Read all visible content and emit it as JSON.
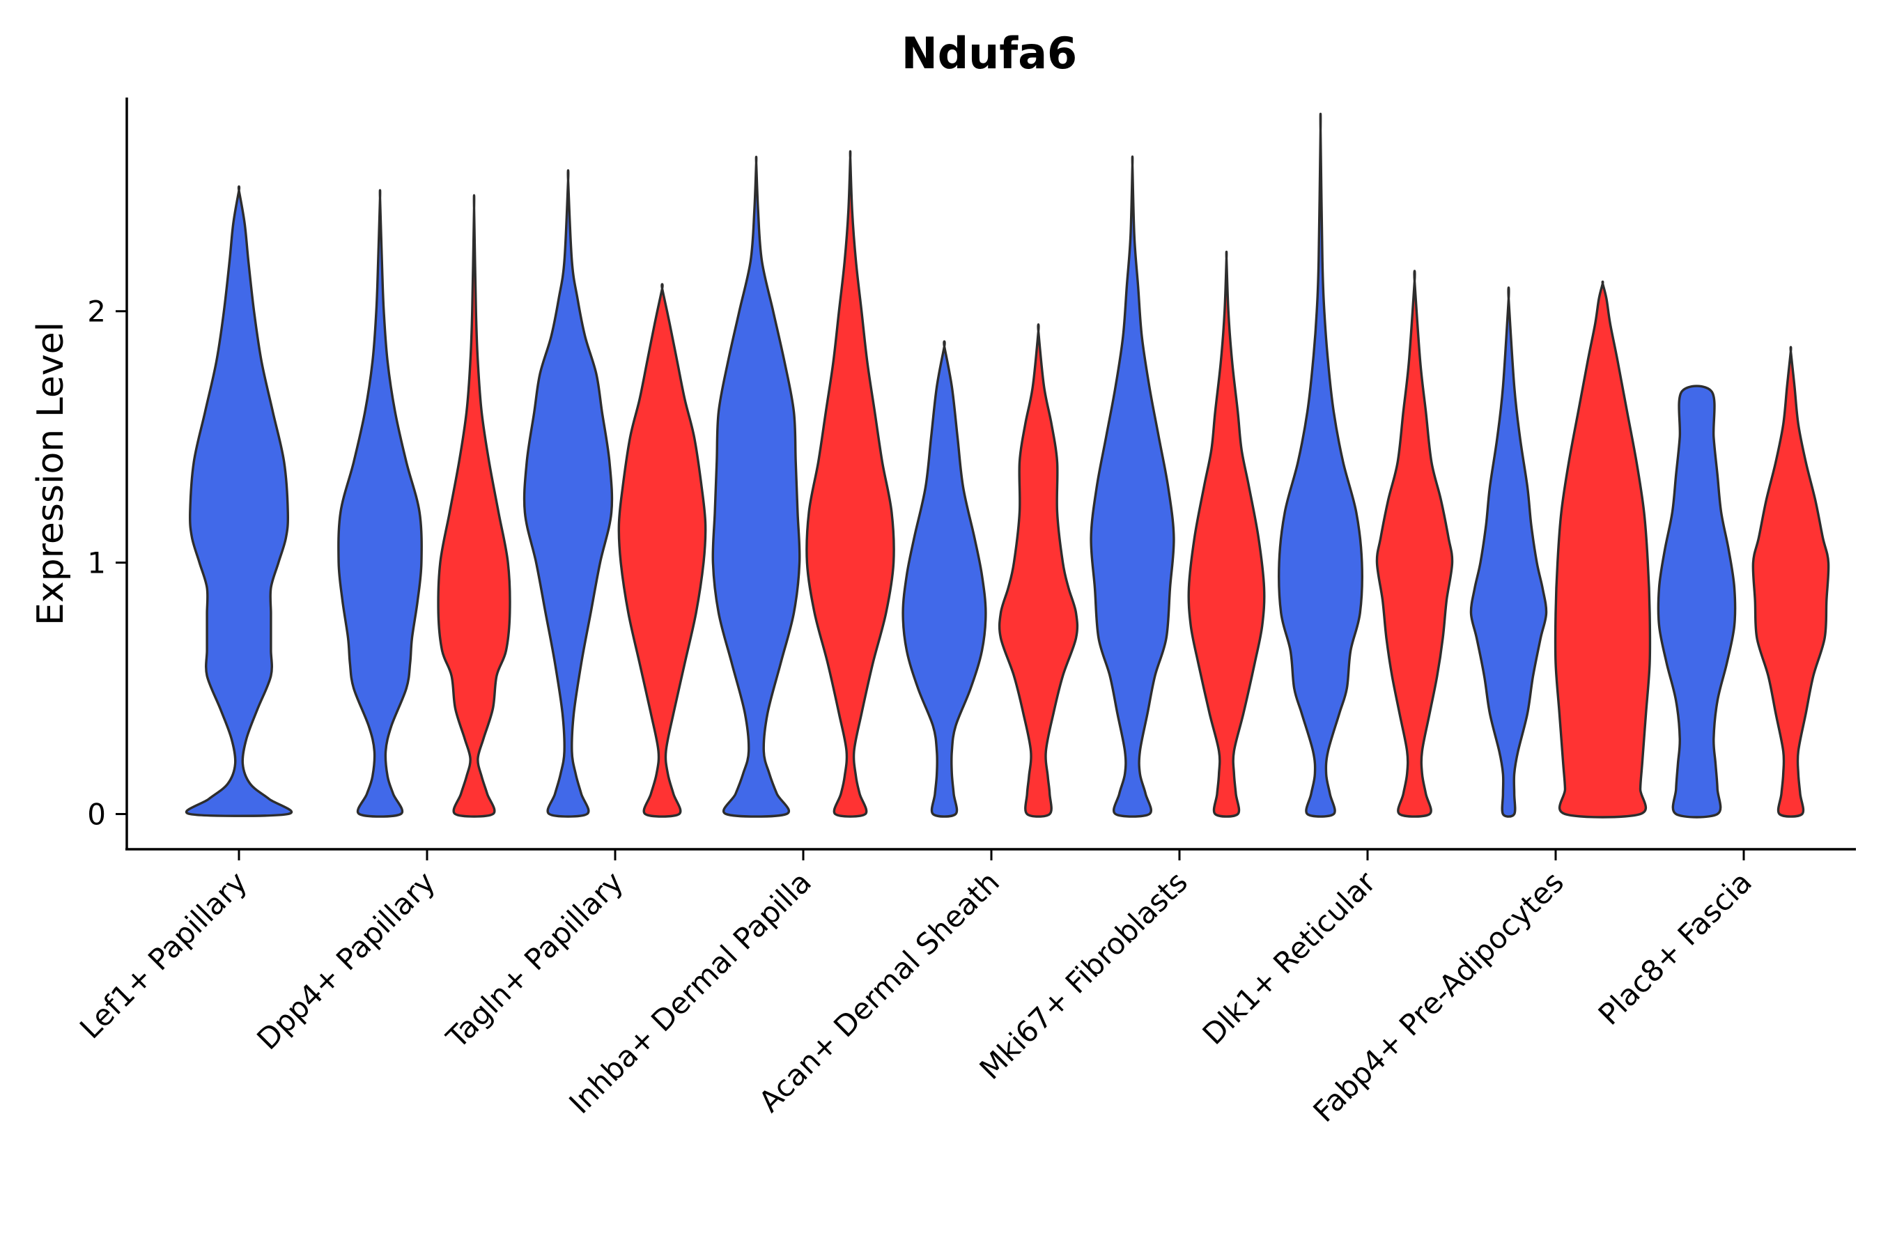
{
  "chart_data": {
    "type": "violin",
    "title": "Ndufa6",
    "xlabel": "",
    "ylabel": "Expression Level",
    "ylim": [
      -0.14,
      2.85
    ],
    "yticks": [
      0,
      1,
      2
    ],
    "grid": false,
    "legend": "none",
    "colors": {
      "group_a": "#4169E9",
      "group_b": "#FF3333",
      "outline": "#2d2d2d"
    },
    "categories": [
      "Lef1+ Papillary",
      "Dpp4+ Papillary",
      "Tagln+ Papillary",
      "Inhba+ Dermal Papilla",
      "Acan+ Dermal Sheath",
      "Mki67+ Fibroblasts",
      "Dlk1+ Reticular",
      "Fabp4+ Pre-Adipocytes",
      "Plac8+ Fascia"
    ],
    "violins": [
      {
        "category": "Lef1+ Papillary",
        "group": "a",
        "max": 2.48,
        "halfwidth": 0.26,
        "profile": [
          [
            0,
            0.26
          ],
          [
            0.06,
            0.16
          ],
          [
            0.12,
            0.06
          ],
          [
            0.2,
            0.02
          ],
          [
            0.3,
            0.04
          ],
          [
            0.42,
            0.1
          ],
          [
            0.55,
            0.17
          ],
          [
            0.65,
            0.17
          ],
          [
            0.73,
            0.17
          ],
          [
            0.8,
            0.17
          ],
          [
            0.9,
            0.17
          ],
          [
            1.0,
            0.21
          ],
          [
            1.1,
            0.25
          ],
          [
            1.2,
            0.26
          ],
          [
            1.4,
            0.24
          ],
          [
            1.6,
            0.18
          ],
          [
            1.8,
            0.12
          ],
          [
            2.0,
            0.08
          ],
          [
            2.2,
            0.05
          ],
          [
            2.35,
            0.03
          ],
          [
            2.48,
            0.0
          ]
        ]
      },
      {
        "category": "Dpp4+ Papillary",
        "group": "a",
        "max": 2.45,
        "halfwidth": 0.22,
        "profile": [
          [
            0,
            0.11
          ],
          [
            0.08,
            0.07
          ],
          [
            0.15,
            0.04
          ],
          [
            0.25,
            0.03
          ],
          [
            0.35,
            0.06
          ],
          [
            0.5,
            0.14
          ],
          [
            0.6,
            0.16
          ],
          [
            0.7,
            0.17
          ],
          [
            0.85,
            0.2
          ],
          [
            1.0,
            0.22
          ],
          [
            1.2,
            0.21
          ],
          [
            1.4,
            0.14
          ],
          [
            1.6,
            0.08
          ],
          [
            1.8,
            0.04
          ],
          [
            2.0,
            0.02
          ],
          [
            2.2,
            0.01
          ],
          [
            2.45,
            0.0
          ]
        ]
      },
      {
        "category": "Dpp4+ Papillary",
        "group": "b",
        "max": 2.41,
        "halfwidth": 0.19,
        "profile": [
          [
            0,
            0.1
          ],
          [
            0.08,
            0.07
          ],
          [
            0.15,
            0.04
          ],
          [
            0.22,
            0.02
          ],
          [
            0.3,
            0.05
          ],
          [
            0.42,
            0.1
          ],
          [
            0.55,
            0.12
          ],
          [
            0.65,
            0.17
          ],
          [
            0.8,
            0.19
          ],
          [
            1.0,
            0.18
          ],
          [
            1.2,
            0.13
          ],
          [
            1.4,
            0.08
          ],
          [
            1.6,
            0.04
          ],
          [
            1.8,
            0.02
          ],
          [
            2.0,
            0.01
          ],
          [
            2.41,
            0.0
          ]
        ]
      },
      {
        "category": "Tagln+ Papillary",
        "group": "a",
        "max": 2.52,
        "halfwidth": 0.23,
        "profile": [
          [
            0,
            0.1
          ],
          [
            0.08,
            0.07
          ],
          [
            0.16,
            0.04
          ],
          [
            0.25,
            0.02
          ],
          [
            0.4,
            0.03
          ],
          [
            0.6,
            0.07
          ],
          [
            0.8,
            0.12
          ],
          [
            1.0,
            0.17
          ],
          [
            1.2,
            0.23
          ],
          [
            1.4,
            0.22
          ],
          [
            1.6,
            0.18
          ],
          [
            1.75,
            0.15
          ],
          [
            1.9,
            0.09
          ],
          [
            2.05,
            0.05
          ],
          [
            2.2,
            0.02
          ],
          [
            2.52,
            0.0
          ]
        ]
      },
      {
        "category": "Tagln+ Papillary",
        "group": "b",
        "max": 2.09,
        "halfwidth": 0.23,
        "profile": [
          [
            0,
            0.09
          ],
          [
            0.08,
            0.06
          ],
          [
            0.16,
            0.03
          ],
          [
            0.25,
            0.02
          ],
          [
            0.4,
            0.06
          ],
          [
            0.6,
            0.12
          ],
          [
            0.8,
            0.18
          ],
          [
            1.0,
            0.22
          ],
          [
            1.15,
            0.23
          ],
          [
            1.3,
            0.21
          ],
          [
            1.5,
            0.17
          ],
          [
            1.65,
            0.12
          ],
          [
            1.8,
            0.08
          ],
          [
            1.95,
            0.04
          ],
          [
            2.09,
            0.0
          ]
        ]
      },
      {
        "category": "Inhba+ Dermal Papilla",
        "group": "a",
        "max": 2.59,
        "halfwidth": 0.23,
        "profile": [
          [
            0,
            0.16
          ],
          [
            0.08,
            0.11
          ],
          [
            0.16,
            0.07
          ],
          [
            0.25,
            0.04
          ],
          [
            0.4,
            0.06
          ],
          [
            0.6,
            0.13
          ],
          [
            0.8,
            0.2
          ],
          [
            1.0,
            0.23
          ],
          [
            1.2,
            0.22
          ],
          [
            1.4,
            0.21
          ],
          [
            1.6,
            0.2
          ],
          [
            1.8,
            0.15
          ],
          [
            2.0,
            0.09
          ],
          [
            2.2,
            0.03
          ],
          [
            2.4,
            0.01
          ],
          [
            2.59,
            0.0
          ]
        ]
      },
      {
        "category": "Inhba+ Dermal Papilla",
        "group": "b",
        "max": 2.61,
        "halfwidth": 0.23,
        "profile": [
          [
            0,
            0.08
          ],
          [
            0.08,
            0.05
          ],
          [
            0.15,
            0.03
          ],
          [
            0.25,
            0.02
          ],
          [
            0.4,
            0.06
          ],
          [
            0.6,
            0.12
          ],
          [
            0.8,
            0.19
          ],
          [
            1.0,
            0.23
          ],
          [
            1.2,
            0.22
          ],
          [
            1.4,
            0.17
          ],
          [
            1.6,
            0.13
          ],
          [
            1.8,
            0.09
          ],
          [
            2.0,
            0.06
          ],
          [
            2.2,
            0.03
          ],
          [
            2.4,
            0.01
          ],
          [
            2.61,
            0.0
          ]
        ]
      },
      {
        "category": "Acan+ Dermal Sheath",
        "group": "a",
        "max": 1.86,
        "halfwidth": 0.23,
        "profile": [
          [
            0,
            0.06
          ],
          [
            0.08,
            0.05
          ],
          [
            0.16,
            0.04
          ],
          [
            0.25,
            0.04
          ],
          [
            0.35,
            0.06
          ],
          [
            0.5,
            0.14
          ],
          [
            0.65,
            0.2
          ],
          [
            0.8,
            0.22
          ],
          [
            0.95,
            0.2
          ],
          [
            1.1,
            0.16
          ],
          [
            1.3,
            0.1
          ],
          [
            1.5,
            0.07
          ],
          [
            1.7,
            0.04
          ],
          [
            1.86,
            0.0
          ]
        ]
      },
      {
        "category": "Acan+ Dermal Sheath",
        "group": "b",
        "max": 1.92,
        "halfwidth": 0.2,
        "profile": [
          [
            0,
            0.06
          ],
          [
            0.08,
            0.06
          ],
          [
            0.15,
            0.05
          ],
          [
            0.25,
            0.04
          ],
          [
            0.4,
            0.08
          ],
          [
            0.55,
            0.13
          ],
          [
            0.7,
            0.2
          ],
          [
            0.8,
            0.2
          ],
          [
            0.9,
            0.16
          ],
          [
            1.0,
            0.13
          ],
          [
            1.2,
            0.1
          ],
          [
            1.4,
            0.1
          ],
          [
            1.55,
            0.07
          ],
          [
            1.7,
            0.03
          ],
          [
            1.92,
            0.0
          ]
        ]
      },
      {
        "category": "Mki67+ Fibroblasts",
        "group": "a",
        "max": 2.58,
        "halfwidth": 0.23,
        "profile": [
          [
            0,
            0.09
          ],
          [
            0.08,
            0.07
          ],
          [
            0.16,
            0.04
          ],
          [
            0.25,
            0.04
          ],
          [
            0.4,
            0.08
          ],
          [
            0.55,
            0.12
          ],
          [
            0.7,
            0.18
          ],
          [
            0.9,
            0.2
          ],
          [
            1.1,
            0.22
          ],
          [
            1.3,
            0.19
          ],
          [
            1.5,
            0.14
          ],
          [
            1.7,
            0.09
          ],
          [
            1.9,
            0.05
          ],
          [
            2.1,
            0.03
          ],
          [
            2.3,
            0.01
          ],
          [
            2.58,
            0.0
          ]
        ]
      },
      {
        "category": "Mki67+ Fibroblasts",
        "group": "b",
        "max": 2.21,
        "halfwidth": 0.21,
        "profile": [
          [
            0,
            0.06
          ],
          [
            0.08,
            0.05
          ],
          [
            0.16,
            0.04
          ],
          [
            0.25,
            0.04
          ],
          [
            0.4,
            0.09
          ],
          [
            0.6,
            0.15
          ],
          [
            0.75,
            0.19
          ],
          [
            0.9,
            0.2
          ],
          [
            1.1,
            0.17
          ],
          [
            1.3,
            0.12
          ],
          [
            1.45,
            0.08
          ],
          [
            1.6,
            0.06
          ],
          [
            1.8,
            0.03
          ],
          [
            2.0,
            0.01
          ],
          [
            2.21,
            0.0
          ]
        ]
      },
      {
        "category": "Dlk1+ Reticular",
        "group": "a",
        "max": 2.72,
        "halfwidth": 0.22,
        "profile": [
          [
            0,
            0.07
          ],
          [
            0.08,
            0.05
          ],
          [
            0.16,
            0.03
          ],
          [
            0.25,
            0.04
          ],
          [
            0.4,
            0.1
          ],
          [
            0.5,
            0.14
          ],
          [
            0.65,
            0.16
          ],
          [
            0.8,
            0.21
          ],
          [
            1.0,
            0.22
          ],
          [
            1.2,
            0.19
          ],
          [
            1.4,
            0.12
          ],
          [
            1.6,
            0.07
          ],
          [
            1.8,
            0.04
          ],
          [
            2.0,
            0.02
          ],
          [
            2.2,
            0.01
          ],
          [
            2.72,
            0.0
          ]
        ]
      },
      {
        "category": "Dlk1+ Reticular",
        "group": "b",
        "max": 2.12,
        "halfwidth": 0.2,
        "profile": [
          [
            0,
            0.08
          ],
          [
            0.08,
            0.06
          ],
          [
            0.16,
            0.04
          ],
          [
            0.25,
            0.04
          ],
          [
            0.4,
            0.08
          ],
          [
            0.55,
            0.12
          ],
          [
            0.7,
            0.15
          ],
          [
            0.85,
            0.17
          ],
          [
            1.0,
            0.2
          ],
          [
            1.1,
            0.18
          ],
          [
            1.25,
            0.14
          ],
          [
            1.4,
            0.09
          ],
          [
            1.6,
            0.06
          ],
          [
            1.8,
            0.03
          ],
          [
            2.12,
            0.0
          ]
        ]
      },
      {
        "category": "Fabp4+ Pre-Adipocytes",
        "group": "a",
        "max": 2.05,
        "halfwidth": 0.2,
        "profile": [
          [
            0,
            0.03
          ],
          [
            0.08,
            0.03
          ],
          [
            0.16,
            0.03
          ],
          [
            0.25,
            0.05
          ],
          [
            0.4,
            0.1
          ],
          [
            0.55,
            0.13
          ],
          [
            0.7,
            0.17
          ],
          [
            0.8,
            0.2
          ],
          [
            0.9,
            0.18
          ],
          [
            1.0,
            0.15
          ],
          [
            1.15,
            0.12
          ],
          [
            1.3,
            0.1
          ],
          [
            1.5,
            0.06
          ],
          [
            1.7,
            0.03
          ],
          [
            2.05,
            0.0
          ]
        ]
      },
      {
        "category": "Fabp4+ Pre-Adipocytes",
        "group": "b",
        "max": 2.11,
        "halfwidth": 0.25,
        "profile": [
          [
            0,
            0.2
          ],
          [
            0.1,
            0.2
          ],
          [
            0.2,
            0.21
          ],
          [
            0.4,
            0.23
          ],
          [
            0.6,
            0.25
          ],
          [
            0.8,
            0.25
          ],
          [
            1.0,
            0.24
          ],
          [
            1.2,
            0.22
          ],
          [
            1.4,
            0.18
          ],
          [
            1.6,
            0.13
          ],
          [
            1.8,
            0.08
          ],
          [
            1.95,
            0.04
          ],
          [
            2.05,
            0.02
          ],
          [
            2.11,
            0.0
          ]
        ]
      },
      {
        "category": "Plac8+ Fascia",
        "group": "a",
        "max": 1.68,
        "halfwidth": 0.2,
        "profile": [
          [
            0,
            0.11
          ],
          [
            0.1,
            0.11
          ],
          [
            0.2,
            0.1
          ],
          [
            0.3,
            0.09
          ],
          [
            0.45,
            0.11
          ],
          [
            0.6,
            0.16
          ],
          [
            0.75,
            0.2
          ],
          [
            0.9,
            0.2
          ],
          [
            1.05,
            0.17
          ],
          [
            1.2,
            0.13
          ],
          [
            1.35,
            0.11
          ],
          [
            1.5,
            0.09
          ],
          [
            1.68,
            0.08
          ]
        ]
      },
      {
        "category": "Plac8+ Fascia",
        "group": "b",
        "max": 1.84,
        "halfwidth": 0.2,
        "profile": [
          [
            0,
            0.06
          ],
          [
            0.08,
            0.05
          ],
          [
            0.16,
            0.04
          ],
          [
            0.25,
            0.04
          ],
          [
            0.4,
            0.08
          ],
          [
            0.55,
            0.12
          ],
          [
            0.7,
            0.18
          ],
          [
            0.85,
            0.19
          ],
          [
            1.0,
            0.2
          ],
          [
            1.1,
            0.17
          ],
          [
            1.25,
            0.13
          ],
          [
            1.4,
            0.08
          ],
          [
            1.55,
            0.04
          ],
          [
            1.7,
            0.02
          ],
          [
            1.84,
            0.0
          ]
        ]
      }
    ]
  }
}
